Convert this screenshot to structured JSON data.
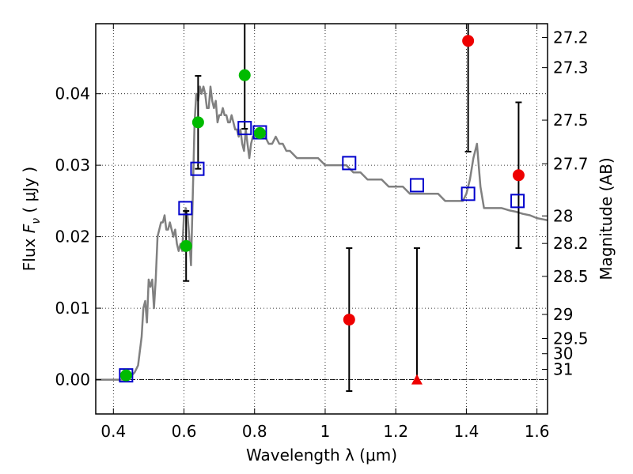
{
  "chart_data": {
    "type": "scatter",
    "xlabel": "Wavelength  λ (μm)",
    "ylabel_prefix": "Flux  ",
    "ylabel_symbol": "F",
    "ylabel_sub": "ν",
    "ylabel_suffix": "  ( μJy )",
    "y2label": "Magnitude (AB)",
    "xlim": [
      0.35,
      1.63
    ],
    "ylim": [
      -0.0048,
      0.0498
    ],
    "xticks": [
      0.4,
      0.6,
      0.8,
      1.0,
      1.2,
      1.4,
      1.6
    ],
    "xtick_labels": [
      "0.4",
      "0.6",
      "0.8",
      "1",
      "1.2",
      "1.4",
      "1.6"
    ],
    "yticks": [
      0.0,
      0.01,
      0.02,
      0.03,
      0.04
    ],
    "ytick_labels": [
      "0.00",
      "0.01",
      "0.02",
      "0.03",
      "0.04"
    ],
    "mag_ticks": [
      27.2,
      27.3,
      27.5,
      27.7,
      28,
      28.2,
      28.5,
      29,
      29.5,
      30,
      31
    ],
    "mag_tick_labels": [
      "27.2",
      "27.3",
      "27.5",
      "27.7",
      "28",
      "28.2",
      "28.5",
      "29",
      "29.5",
      "30",
      "31"
    ],
    "grid": true,
    "zero_line": true,
    "colors": {
      "sed": "#808080",
      "model": "#0000cc",
      "green": "#00bb00",
      "red": "#ee0000",
      "errorbar": "#000000"
    },
    "sed_curve": {
      "name": "",
      "x": [
        0.35,
        0.44,
        0.45,
        0.46,
        0.47,
        0.48,
        0.485,
        0.49,
        0.495,
        0.5,
        0.505,
        0.51,
        0.515,
        0.52,
        0.525,
        0.53,
        0.535,
        0.54,
        0.545,
        0.55,
        0.555,
        0.56,
        0.565,
        0.57,
        0.575,
        0.58,
        0.585,
        0.59,
        0.595,
        0.6,
        0.605,
        0.61,
        0.615,
        0.62,
        0.625,
        0.63,
        0.635,
        0.64,
        0.645,
        0.65,
        0.655,
        0.66,
        0.665,
        0.67,
        0.675,
        0.68,
        0.685,
        0.69,
        0.695,
        0.7,
        0.705,
        0.71,
        0.715,
        0.72,
        0.725,
        0.73,
        0.735,
        0.74,
        0.745,
        0.75,
        0.755,
        0.76,
        0.765,
        0.77,
        0.775,
        0.78,
        0.785,
        0.79,
        0.795,
        0.8,
        0.81,
        0.82,
        0.83,
        0.84,
        0.85,
        0.86,
        0.87,
        0.88,
        0.89,
        0.9,
        0.92,
        0.94,
        0.96,
        0.98,
        1.0,
        1.02,
        1.04,
        1.06,
        1.08,
        1.1,
        1.12,
        1.14,
        1.16,
        1.18,
        1.2,
        1.22,
        1.24,
        1.26,
        1.28,
        1.3,
        1.32,
        1.34,
        1.36,
        1.38,
        1.39,
        1.4,
        1.41,
        1.42,
        1.43,
        1.44,
        1.45,
        1.46,
        1.48,
        1.5,
        1.52,
        1.54,
        1.56,
        1.58,
        1.6,
        1.63
      ],
      "y": [
        0.0,
        0.0,
        0.0005,
        0.001,
        0.002,
        0.006,
        0.01,
        0.011,
        0.008,
        0.014,
        0.013,
        0.014,
        0.01,
        0.014,
        0.02,
        0.021,
        0.022,
        0.022,
        0.023,
        0.021,
        0.021,
        0.022,
        0.021,
        0.02,
        0.021,
        0.019,
        0.018,
        0.019,
        0.018,
        0.023,
        0.024,
        0.023,
        0.02,
        0.016,
        0.026,
        0.036,
        0.04,
        0.039,
        0.041,
        0.04,
        0.041,
        0.04,
        0.038,
        0.038,
        0.041,
        0.039,
        0.038,
        0.039,
        0.036,
        0.037,
        0.037,
        0.038,
        0.037,
        0.037,
        0.036,
        0.036,
        0.037,
        0.036,
        0.035,
        0.035,
        0.034,
        0.035,
        0.033,
        0.032,
        0.035,
        0.033,
        0.031,
        0.033,
        0.034,
        0.034,
        0.035,
        0.034,
        0.034,
        0.033,
        0.033,
        0.034,
        0.033,
        0.033,
        0.032,
        0.032,
        0.031,
        0.031,
        0.031,
        0.031,
        0.03,
        0.03,
        0.03,
        0.03,
        0.029,
        0.029,
        0.028,
        0.028,
        0.028,
        0.027,
        0.027,
        0.027,
        0.026,
        0.026,
        0.026,
        0.026,
        0.026,
        0.025,
        0.025,
        0.025,
        0.025,
        0.026,
        0.028,
        0.031,
        0.033,
        0.027,
        0.024,
        0.024,
        0.024,
        0.024,
        0.0237,
        0.0235,
        0.0232,
        0.023,
        0.0226,
        0.0223
      ]
    },
    "model_points": {
      "name": "",
      "x": [
        0.436,
        0.604,
        0.638,
        0.772,
        0.815,
        1.068,
        1.26,
        1.405,
        1.545
      ],
      "y": [
        0.0006,
        0.024,
        0.0295,
        0.0352,
        0.0346,
        0.0303,
        0.0272,
        0.026,
        0.025
      ]
    },
    "green_points": {
      "name": "",
      "x": [
        0.436,
        0.606,
        0.64,
        0.772,
        0.815
      ],
      "y": [
        0.0006,
        0.0187,
        0.036,
        0.0426,
        0.0345
      ],
      "yerr": [
        null,
        0.0049,
        0.0065,
        0.0075,
        null
      ]
    },
    "red_points": {
      "name": "",
      "x": [
        1.068,
        1.405,
        1.548
      ],
      "y": [
        0.0084,
        0.0474,
        0.0286
      ],
      "yerr": [
        0.01,
        0.0155,
        0.0102
      ]
    },
    "red_limit": {
      "name": "",
      "x": [
        1.26
      ],
      "y": [
        0.0
      ],
      "bar_top": [
        0.0184
      ]
    }
  }
}
